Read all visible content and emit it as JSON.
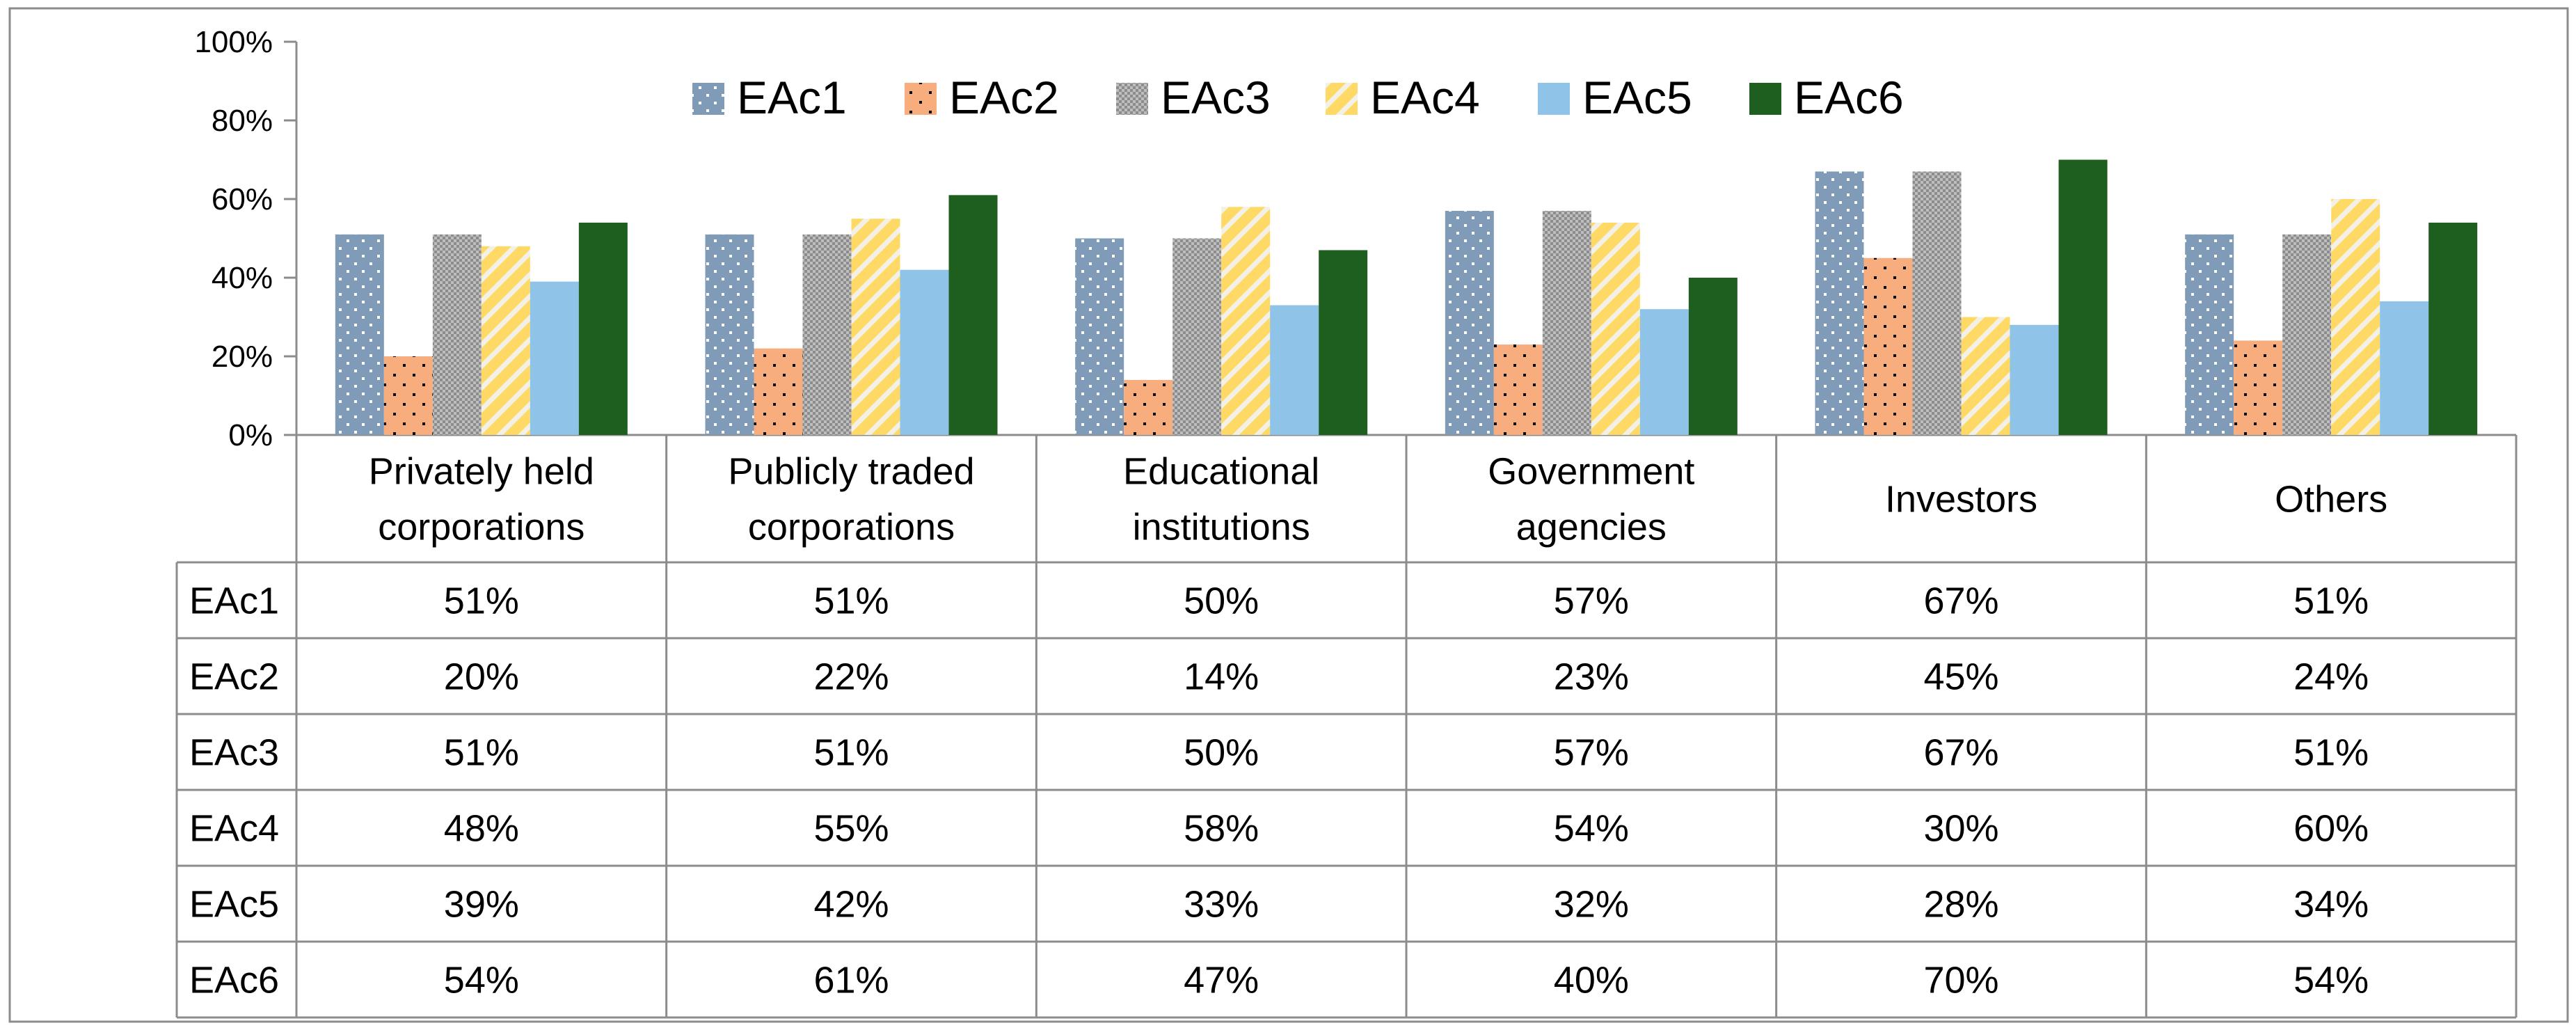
{
  "chart_data": {
    "type": "bar",
    "title": "",
    "xlabel": "",
    "ylabel": "",
    "ylim": [
      0,
      100
    ],
    "y_ticks": [
      "0%",
      "20%",
      "40%",
      "60%",
      "80%",
      "100%"
    ],
    "y_tick_values": [
      0,
      20,
      40,
      60,
      80,
      100
    ],
    "categories": [
      [
        "Privately held",
        "corporations"
      ],
      [
        "Publicly traded",
        "corporations"
      ],
      [
        "Educational",
        "institutions"
      ],
      [
        "Government",
        "agencies"
      ],
      [
        "Investors"
      ],
      [
        "Others"
      ]
    ],
    "series": [
      {
        "name": "EAc1",
        "color": "#7f9bb8",
        "pattern": "dots-white",
        "values": [
          51,
          51,
          50,
          57,
          67,
          51
        ],
        "labels": [
          "51%",
          "51%",
          "50%",
          "57%",
          "67%",
          "51%"
        ]
      },
      {
        "name": "EAc2",
        "color": "#f8ad7f",
        "pattern": "dots-black",
        "values": [
          20,
          22,
          14,
          23,
          45,
          24
        ],
        "labels": [
          "20%",
          "22%",
          "14%",
          "23%",
          "45%",
          "24%"
        ]
      },
      {
        "name": "EAc3",
        "color": "#a8a8a8",
        "pattern": "checker",
        "values": [
          51,
          51,
          50,
          57,
          67,
          51
        ],
        "labels": [
          "51%",
          "51%",
          "50%",
          "57%",
          "67%",
          "51%"
        ]
      },
      {
        "name": "EAc4",
        "color": "#ffd966",
        "pattern": "diagonal",
        "values": [
          48,
          55,
          58,
          54,
          30,
          60
        ],
        "labels": [
          "48%",
          "55%",
          "58%",
          "54%",
          "30%",
          "60%"
        ]
      },
      {
        "name": "EAc5",
        "color": "#8fc4e8",
        "pattern": "solid",
        "values": [
          39,
          42,
          33,
          32,
          28,
          34
        ],
        "labels": [
          "39%",
          "42%",
          "33%",
          "32%",
          "28%",
          "34%"
        ]
      },
      {
        "name": "EAc6",
        "color": "#1e5e1e",
        "pattern": "solid",
        "values": [
          54,
          61,
          47,
          40,
          70,
          54
        ],
        "labels": [
          "54%",
          "61%",
          "47%",
          "40%",
          "70%",
          "54%"
        ]
      }
    ],
    "legend": "top-center",
    "data_table": true
  }
}
